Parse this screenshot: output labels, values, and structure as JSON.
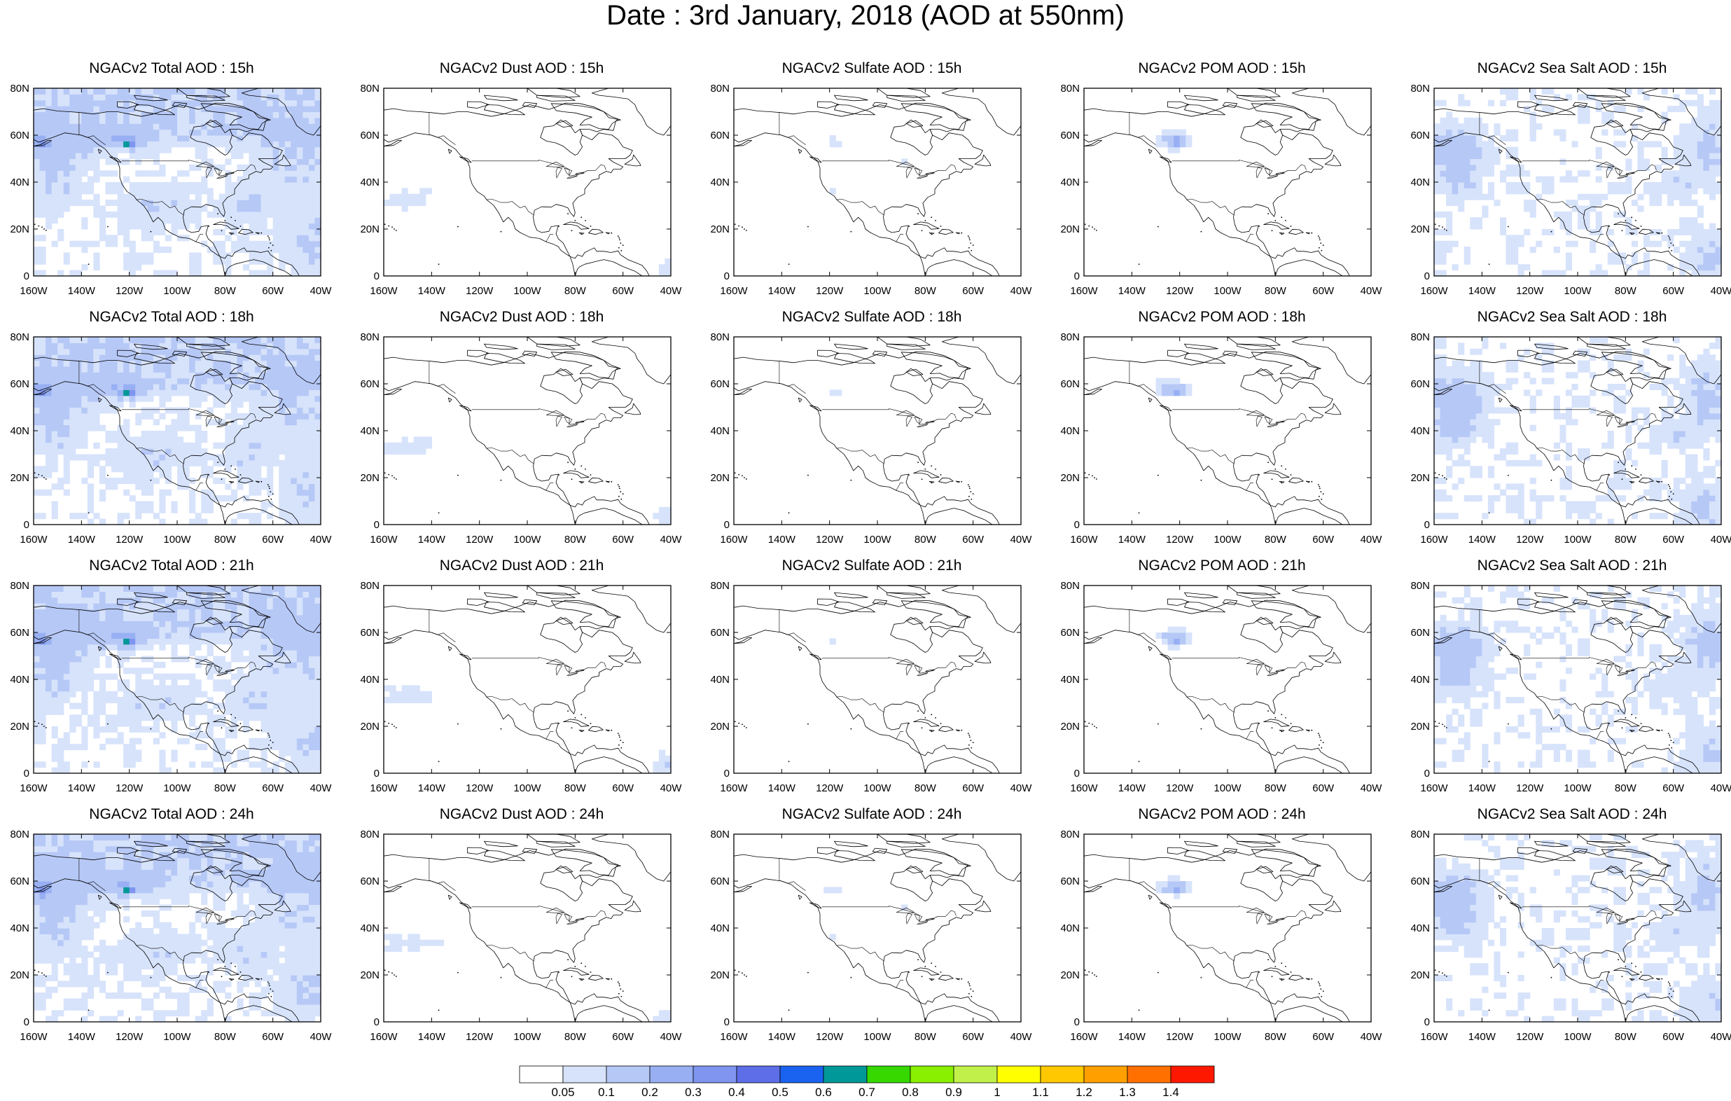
{
  "page": {
    "title": "Date : 3rd January, 2018 (AOD at 550nm)"
  },
  "chart_data": {
    "type": "heatmap",
    "layout": {
      "rows": 4,
      "cols": 5,
      "legend_position": "bottom"
    },
    "xlim": [
      -160,
      -40
    ],
    "ylim": [
      0,
      80
    ],
    "grid": false,
    "x_ticks": [
      {
        "value": -160,
        "label": "160W"
      },
      {
        "value": -140,
        "label": "140W"
      },
      {
        "value": -120,
        "label": "120W"
      },
      {
        "value": -100,
        "label": "100W"
      },
      {
        "value": -80,
        "label": "80W"
      },
      {
        "value": -60,
        "label": "60W"
      },
      {
        "value": -40,
        "label": "40W"
      }
    ],
    "y_ticks": [
      {
        "value": 0,
        "label": "0"
      },
      {
        "value": 20,
        "label": "20N"
      },
      {
        "value": 40,
        "label": "40N"
      },
      {
        "value": 60,
        "label": "60N"
      },
      {
        "value": 80,
        "label": "80N"
      }
    ],
    "colorbar": {
      "levels": [
        "0.05",
        "0.1",
        "0.2",
        "0.3",
        "0.4",
        "0.5",
        "0.6",
        "0.7",
        "0.8",
        "0.9",
        "1",
        "1.1",
        "1.2",
        "1.3",
        "1.4"
      ],
      "colors": [
        "#ffffff",
        "#d7e3fb",
        "#b6c8f6",
        "#98b0f3",
        "#7f95ef",
        "#5e6de8",
        "#1a63f0",
        "#009898",
        "#36d800",
        "#88f000",
        "#c2f04a",
        "#ffff00",
        "#ffc800",
        "#ffa000",
        "#ff7000",
        "#ff1800"
      ]
    },
    "panels": [
      {
        "title": "NGACv2 Total AOD : 15h",
        "field": "total"
      },
      {
        "title": "NGACv2 Dust AOD : 15h",
        "field": "dust"
      },
      {
        "title": "NGACv2 Sulfate AOD : 15h",
        "field": "sulfate"
      },
      {
        "title": "NGACv2 POM AOD : 15h",
        "field": "pom"
      },
      {
        "title": "NGACv2 Sea Salt AOD : 15h",
        "field": "seasalt"
      },
      {
        "title": "NGACv2 Total AOD : 18h",
        "field": "total"
      },
      {
        "title": "NGACv2 Dust AOD : 18h",
        "field": "dust"
      },
      {
        "title": "NGACv2 Sulfate AOD : 18h",
        "field": "sulfate"
      },
      {
        "title": "NGACv2 POM AOD : 18h",
        "field": "pom"
      },
      {
        "title": "NGACv2 Sea Salt AOD : 18h",
        "field": "seasalt"
      },
      {
        "title": "NGACv2 Total AOD : 21h",
        "field": "total"
      },
      {
        "title": "NGACv2 Dust AOD : 21h",
        "field": "dust"
      },
      {
        "title": "NGACv2 Sulfate AOD : 21h",
        "field": "sulfate"
      },
      {
        "title": "NGACv2 POM AOD : 21h",
        "field": "pom"
      },
      {
        "title": "NGACv2 Sea Salt AOD : 21h",
        "field": "seasalt"
      },
      {
        "title": "NGACv2 Total AOD : 24h",
        "field": "total"
      },
      {
        "title": "NGACv2 Dust AOD : 24h",
        "field": "dust"
      },
      {
        "title": "NGACv2 Sulfate AOD : 24h",
        "field": "sulfate"
      },
      {
        "title": "NGACv2 POM AOD : 24h",
        "field": "pom"
      },
      {
        "title": "NGACv2 Sea Salt  AOD : 24h",
        "field": "seasalt"
      }
    ]
  }
}
